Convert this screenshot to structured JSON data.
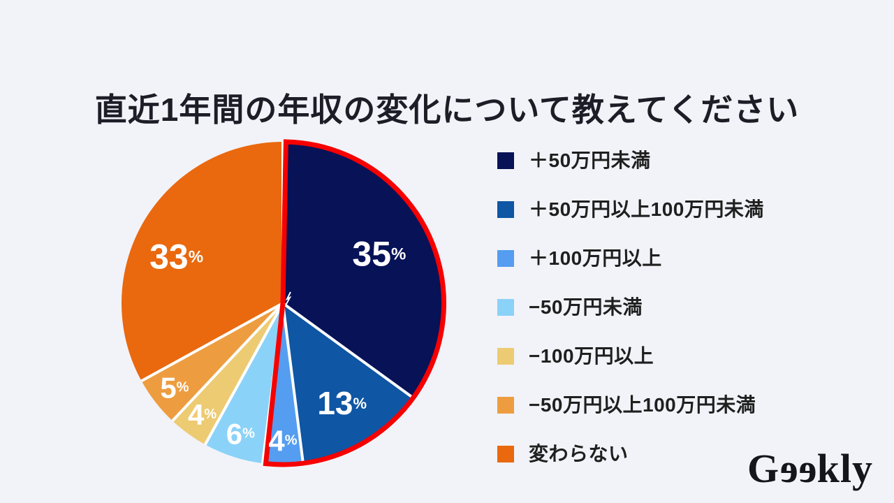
{
  "page": {
    "background_color": "#f2f3f8"
  },
  "chart_data": {
    "type": "pie",
    "title": "直近1年間の年収の変化について教えてください",
    "unit": "%",
    "slices": [
      {
        "label": "＋50万円未満",
        "value": 35,
        "color": "#071257"
      },
      {
        "label": "＋50万円以上100万円未満",
        "value": 13,
        "color": "#0f56a4"
      },
      {
        "label": "＋100万円以上",
        "value": 4,
        "color": "#559df0"
      },
      {
        "label": "−50万円未満",
        "value": 6,
        "color": "#8bd2f8"
      },
      {
        "label": "−100万円以上",
        "value": 4,
        "color": "#edcb72"
      },
      {
        "label": "−50万円以上100万円未満",
        "value": 5,
        "color": "#ed9d40"
      },
      {
        "label": "変わらない",
        "value": 33,
        "color": "#ea680e"
      }
    ],
    "highlight_outline": {
      "color": "#f60000",
      "covers_slices": [
        0,
        1,
        2
      ]
    },
    "layout": {
      "legend_position": "right",
      "start_angle_deg": 0,
      "direction": "clockwise",
      "divider_color": "#ffffff",
      "label_radius_factors": [
        0.67,
        0.72,
        0.85,
        0.85,
        0.85,
        0.85,
        0.72
      ],
      "label_angle_offsets": [
        0,
        0,
        0,
        0,
        0,
        0,
        -7
      ]
    }
  },
  "logo": {
    "text": "Geekly",
    "part_g": "G",
    "part_ee": "ee",
    "part_kly": "kly"
  }
}
